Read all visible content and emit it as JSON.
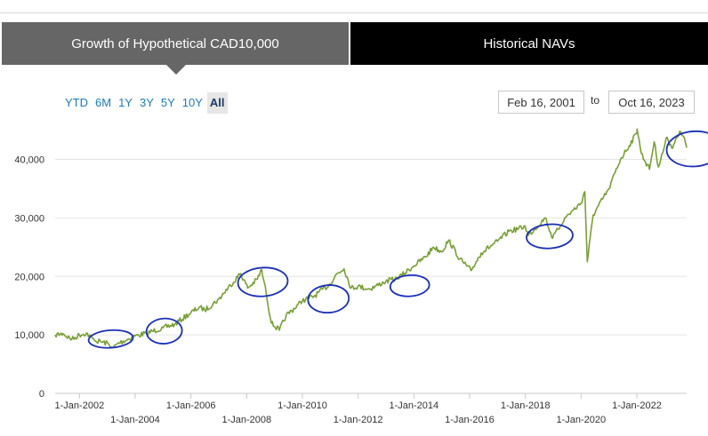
{
  "tabs": [
    {
      "label": "Growth of Hypothetical CAD10,000",
      "active": true
    },
    {
      "label": "Historical NAVs",
      "active": false
    }
  ],
  "range_buttons": [
    "YTD",
    "6M",
    "1Y",
    "3Y",
    "5Y",
    "10Y",
    "All"
  ],
  "selected_range": "All",
  "date_range": {
    "from": "Feb 16, 2001",
    "separator": "to",
    "to": "Oct 16, 2023"
  },
  "colors": {
    "line": "#78a035",
    "annotation": "#1a2fb8",
    "tab_active": "#666666",
    "tab_inactive": "#000000",
    "link": "#1a7cc2"
  },
  "chart_data": {
    "type": "line",
    "title": "",
    "xlabel": "",
    "ylabel": "",
    "ylim": [
      0,
      46000
    ],
    "xlim": [
      "2001-02-16",
      "2023-10-16"
    ],
    "yticks": [
      {
        "value": 0,
        "label": "0"
      },
      {
        "value": 10000,
        "label": "10,000"
      },
      {
        "value": 20000,
        "label": "20,000"
      },
      {
        "value": 30000,
        "label": "30,000"
      },
      {
        "value": 40000,
        "label": "40,000"
      }
    ],
    "xticks": [
      {
        "date": "2002-01-01",
        "label": "1-Jan-2002"
      },
      {
        "date": "2004-01-01",
        "label": "1-Jan-2004"
      },
      {
        "date": "2006-01-01",
        "label": "1-Jan-2006"
      },
      {
        "date": "2008-01-01",
        "label": "1-Jan-2008"
      },
      {
        "date": "2010-01-01",
        "label": "1-Jan-2010"
      },
      {
        "date": "2012-01-01",
        "label": "1-Jan-2012"
      },
      {
        "date": "2014-01-01",
        "label": "1-Jan-2014"
      },
      {
        "date": "2016-01-01",
        "label": "1-Jan-2016"
      },
      {
        "date": "2018-01-01",
        "label": "1-Jan-2018"
      },
      {
        "date": "2020-01-01",
        "label": "1-Jan-2020"
      },
      {
        "date": "2022-01-01",
        "label": "1-Jan-2022"
      }
    ],
    "grid": true,
    "series": [
      {
        "points": [
          [
            "2001-02-16",
            10000
          ],
          [
            "2001-06-01",
            10200
          ],
          [
            "2001-09-20",
            9200
          ],
          [
            "2001-12-31",
            10000
          ],
          [
            "2002-04-01",
            10300
          ],
          [
            "2002-07-20",
            9000
          ],
          [
            "2002-10-10",
            8800
          ],
          [
            "2003-01-15",
            8500
          ],
          [
            "2003-03-15",
            7800
          ],
          [
            "2003-06-01",
            8600
          ],
          [
            "2003-12-31",
            9800
          ],
          [
            "2004-06-01",
            10300
          ],
          [
            "2004-12-31",
            11200
          ],
          [
            "2005-06-01",
            11800
          ],
          [
            "2005-12-31",
            13800
          ],
          [
            "2006-05-01",
            14800
          ],
          [
            "2006-07-01",
            14200
          ],
          [
            "2006-12-31",
            16100
          ],
          [
            "2007-06-01",
            18500
          ],
          [
            "2007-10-15",
            20500
          ],
          [
            "2008-01-15",
            18000
          ],
          [
            "2008-05-20",
            19500
          ],
          [
            "2008-07-15",
            21200
          ],
          [
            "2008-09-15",
            17000
          ],
          [
            "2008-11-20",
            12000
          ],
          [
            "2009-03-05",
            10800
          ],
          [
            "2009-06-01",
            13300
          ],
          [
            "2009-12-31",
            15800
          ],
          [
            "2010-06-01",
            16600
          ],
          [
            "2010-12-31",
            18700
          ],
          [
            "2011-04-01",
            20500
          ],
          [
            "2011-07-01",
            21300
          ],
          [
            "2011-10-01",
            18000
          ],
          [
            "2011-12-31",
            18300
          ],
          [
            "2012-06-01",
            17800
          ],
          [
            "2012-12-31",
            19200
          ],
          [
            "2013-06-01",
            19600
          ],
          [
            "2013-12-31",
            21800
          ],
          [
            "2014-06-01",
            23300
          ],
          [
            "2014-09-15",
            25000
          ],
          [
            "2014-12-31",
            24200
          ],
          [
            "2015-04-01",
            26200
          ],
          [
            "2015-08-25",
            23000
          ],
          [
            "2016-01-20",
            21000
          ],
          [
            "2016-06-01",
            24000
          ],
          [
            "2016-12-31",
            26000
          ],
          [
            "2017-06-01",
            27700
          ],
          [
            "2017-12-31",
            28500
          ],
          [
            "2018-02-08",
            27000
          ],
          [
            "2018-09-20",
            30000
          ],
          [
            "2018-12-24",
            26500
          ],
          [
            "2019-06-01",
            30000
          ],
          [
            "2019-12-31",
            32500
          ],
          [
            "2020-02-19",
            34500
          ],
          [
            "2020-03-23",
            22500
          ],
          [
            "2020-06-08",
            30500
          ],
          [
            "2020-12-31",
            35000
          ],
          [
            "2021-06-01",
            40000
          ],
          [
            "2021-12-31",
            44500
          ],
          [
            "2022-01-04",
            45200
          ],
          [
            "2022-03-01",
            41000
          ],
          [
            "2022-06-16",
            38300
          ],
          [
            "2022-08-16",
            43000
          ],
          [
            "2022-10-12",
            38700
          ],
          [
            "2023-02-02",
            43800
          ],
          [
            "2023-04-01",
            42000
          ],
          [
            "2023-07-31",
            44700
          ],
          [
            "2023-09-01",
            44000
          ],
          [
            "2023-10-16",
            42000
          ]
        ]
      }
    ],
    "annotations": [
      {
        "type": "ellipse",
        "x1": "2000-11-01",
        "x2": "2005-06-01",
        "y1": 7800,
        "y2": 10800
      },
      {
        "type": "ellipse",
        "x1": "2004-01-01",
        "x2": "2006-02-01",
        "y1": 8500,
        "y2": 12800
      },
      {
        "type": "ellipse",
        "x1": "2007-01-01",
        "x2": "2010-03-01",
        "y1": 16600,
        "y2": 21500
      },
      {
        "type": "ellipse",
        "x1": "2009-08-15",
        "x2": "2012-04-01",
        "y1": 13800,
        "y2": 18500
      },
      {
        "type": "ellipse",
        "x1": "2012-09-01",
        "x2": "2015-01-15",
        "y1": 16600,
        "y2": 20200
      },
      {
        "type": "ellipse",
        "x1": "2017-03-01",
        "x2": "2020-08-01",
        "y1": 24800,
        "y2": 28900
      },
      {
        "type": "ellipse",
        "x1": "2021-09-15",
        "x2": "2026-06-01",
        "y1": 38800,
        "y2": 44800
      }
    ]
  }
}
